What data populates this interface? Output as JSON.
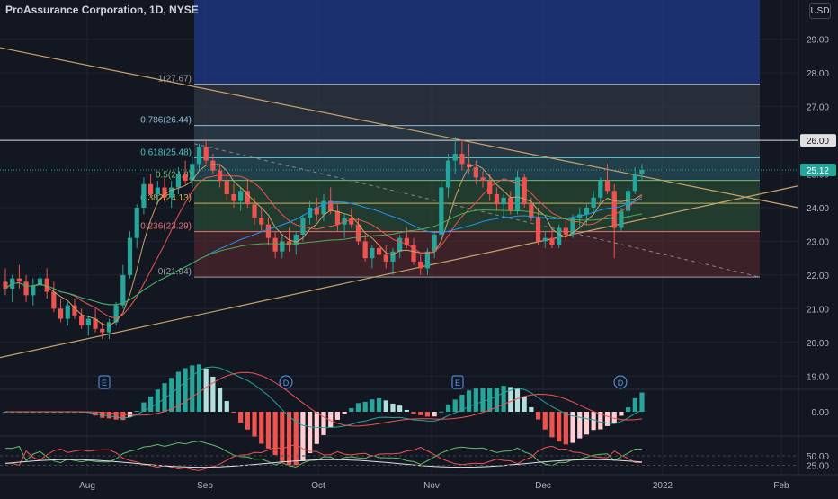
{
  "header": {
    "symbol_line": "ProAssurance Corporation, 1D, NYSE",
    "currency": "USD"
  },
  "colors": {
    "background": "#131722",
    "grid": "#1f2330",
    "up": "#26a69a",
    "down": "#ef5350",
    "fib_top_band": "#1e3a8a",
    "trendline": "#c8a36a"
  },
  "chart_data": {
    "type": "candlestick",
    "x_labels": [
      "Aug",
      "Sep",
      "Oct",
      "Nov",
      "Dec",
      "2022",
      "Feb"
    ],
    "y_labels": [
      "29.00",
      "28.00",
      "27.00",
      "26.00",
      "25.00",
      "24.00",
      "23.00",
      "22.00",
      "21.00",
      "20.00",
      "19.00"
    ],
    "ylim": [
      18.9,
      29.9
    ],
    "last_price_label": "25.12",
    "horizontal_line_label": "26.00",
    "horizontal_line_value": 26.0,
    "fib_levels": [
      {
        "label": "1(27.67)",
        "value": 27.67
      },
      {
        "label": "0.786(26.44)",
        "value": 26.44
      },
      {
        "label": "0.618(25.48)",
        "value": 25.48
      },
      {
        "label": "0.5(24.8)",
        "value": 24.81
      },
      {
        "label": "0.382(24.13)",
        "value": 24.13
      },
      {
        "label": "0.236(23.29)",
        "value": 23.29
      },
      {
        "label": "0(21.94)",
        "value": 21.94
      }
    ],
    "earnings_markers": [
      "E",
      "D",
      "E",
      "D"
    ],
    "macd_axis_label": "0.00",
    "rsi_axis_labels": [
      "50.00",
      "25.00"
    ],
    "candles": [
      [
        21.8,
        22.2,
        21.4,
        21.6
      ],
      [
        21.6,
        22.0,
        21.2,
        21.9
      ],
      [
        21.9,
        22.3,
        21.6,
        21.8
      ],
      [
        21.8,
        22.0,
        21.2,
        21.4
      ],
      [
        21.4,
        21.9,
        21.1,
        21.7
      ],
      [
        21.7,
        22.1,
        21.5,
        21.9
      ],
      [
        21.9,
        22.2,
        21.3,
        21.5
      ],
      [
        21.5,
        21.8,
        20.9,
        21.0
      ],
      [
        21.0,
        21.3,
        20.6,
        20.7
      ],
      [
        20.7,
        21.2,
        20.5,
        21.1
      ],
      [
        21.1,
        21.3,
        20.7,
        20.8
      ],
      [
        20.8,
        21.0,
        20.4,
        20.5
      ],
      [
        20.5,
        20.8,
        20.2,
        20.7
      ],
      [
        20.7,
        21.0,
        20.3,
        20.4
      ],
      [
        20.4,
        20.6,
        20.1,
        20.3
      ],
      [
        20.3,
        20.7,
        20.1,
        20.6
      ],
      [
        20.6,
        21.2,
        20.5,
        21.1
      ],
      [
        21.1,
        22.3,
        21.0,
        22.0
      ],
      [
        22.0,
        23.3,
        21.9,
        23.1
      ],
      [
        23.1,
        24.1,
        22.8,
        24.0
      ],
      [
        24.0,
        24.9,
        23.8,
        24.7
      ],
      [
        24.7,
        25.0,
        24.3,
        24.4
      ],
      [
        24.4,
        24.8,
        24.1,
        24.6
      ],
      [
        24.6,
        24.9,
        24.2,
        24.3
      ],
      [
        24.3,
        24.8,
        24.0,
        24.6
      ],
      [
        24.6,
        25.2,
        24.4,
        25.0
      ],
      [
        25.0,
        25.4,
        24.7,
        24.8
      ],
      [
        24.8,
        25.5,
        24.6,
        25.3
      ],
      [
        25.3,
        25.9,
        25.1,
        25.8
      ],
      [
        25.8,
        26.0,
        25.3,
        25.4
      ],
      [
        25.4,
        25.6,
        25.0,
        25.1
      ],
      [
        25.1,
        25.3,
        24.6,
        24.8
      ],
      [
        24.8,
        25.0,
        24.2,
        24.4
      ],
      [
        24.4,
        24.7,
        24.0,
        24.2
      ],
      [
        24.2,
        24.6,
        23.9,
        24.5
      ],
      [
        24.5,
        24.8,
        24.0,
        24.1
      ],
      [
        24.1,
        24.3,
        23.5,
        23.7
      ],
      [
        23.7,
        24.0,
        23.3,
        23.5
      ],
      [
        23.5,
        23.7,
        22.9,
        23.1
      ],
      [
        23.1,
        23.3,
        22.5,
        22.7
      ],
      [
        22.7,
        23.2,
        22.5,
        23.0
      ],
      [
        23.0,
        23.4,
        22.7,
        22.9
      ],
      [
        22.9,
        23.3,
        22.6,
        23.2
      ],
      [
        23.2,
        23.8,
        23.0,
        23.7
      ],
      [
        23.7,
        24.2,
        23.5,
        24.0
      ],
      [
        24.0,
        24.3,
        23.6,
        23.8
      ],
      [
        23.8,
        24.4,
        23.6,
        24.2
      ],
      [
        24.2,
        24.6,
        23.8,
        23.9
      ],
      [
        23.9,
        24.1,
        23.3,
        23.5
      ],
      [
        23.5,
        23.8,
        23.1,
        23.7
      ],
      [
        23.7,
        24.0,
        23.4,
        23.5
      ],
      [
        23.5,
        23.7,
        22.9,
        23.0
      ],
      [
        23.0,
        23.2,
        22.4,
        22.5
      ],
      [
        22.5,
        22.9,
        22.2,
        22.8
      ],
      [
        22.8,
        23.1,
        22.5,
        22.6
      ],
      [
        22.6,
        22.9,
        22.2,
        22.4
      ],
      [
        22.4,
        22.8,
        22.0,
        22.7
      ],
      [
        22.7,
        23.2,
        22.5,
        23.1
      ],
      [
        23.1,
        23.4,
        22.8,
        22.9
      ],
      [
        22.9,
        23.1,
        22.3,
        22.4
      ],
      [
        22.4,
        22.6,
        22.0,
        22.2
      ],
      [
        22.2,
        22.8,
        22.0,
        22.7
      ],
      [
        22.7,
        23.3,
        22.5,
        23.2
      ],
      [
        23.2,
        24.8,
        23.0,
        24.6
      ],
      [
        24.6,
        25.6,
        24.3,
        25.4
      ],
      [
        25.4,
        26.1,
        25.0,
        25.6
      ],
      [
        25.6,
        26.0,
        25.1,
        25.3
      ],
      [
        25.3,
        25.9,
        25.0,
        25.2
      ],
      [
        25.2,
        25.4,
        24.7,
        24.9
      ],
      [
        24.9,
        25.1,
        24.6,
        24.8
      ],
      [
        24.8,
        25.0,
        24.2,
        24.4
      ],
      [
        24.4,
        24.6,
        23.9,
        24.1
      ],
      [
        24.1,
        24.4,
        23.7,
        24.3
      ],
      [
        24.3,
        24.5,
        23.8,
        23.9
      ],
      [
        23.9,
        25.1,
        23.8,
        24.9
      ],
      [
        24.9,
        25.0,
        24.0,
        24.1
      ],
      [
        24.1,
        24.3,
        23.6,
        23.7
      ],
      [
        23.7,
        24.0,
        22.9,
        23.0
      ],
      [
        23.0,
        23.3,
        22.8,
        23.1
      ],
      [
        23.1,
        23.4,
        22.8,
        22.9
      ],
      [
        22.9,
        23.5,
        22.8,
        23.4
      ],
      [
        23.4,
        23.6,
        23.0,
        23.2
      ],
      [
        23.2,
        23.8,
        23.1,
        23.7
      ],
      [
        23.7,
        24.0,
        23.4,
        23.8
      ],
      [
        23.8,
        24.1,
        23.5,
        24.0
      ],
      [
        24.0,
        24.5,
        23.8,
        24.3
      ],
      [
        24.3,
        24.9,
        24.1,
        24.8
      ],
      [
        24.8,
        25.3,
        24.4,
        24.5
      ],
      [
        24.5,
        24.7,
        22.5,
        23.4
      ],
      [
        23.4,
        24.0,
        23.3,
        23.9
      ],
      [
        23.9,
        24.6,
        23.7,
        24.5
      ],
      [
        24.5,
        25.2,
        24.4,
        25.0
      ],
      [
        25.0,
        25.3,
        24.8,
        25.12
      ]
    ]
  }
}
